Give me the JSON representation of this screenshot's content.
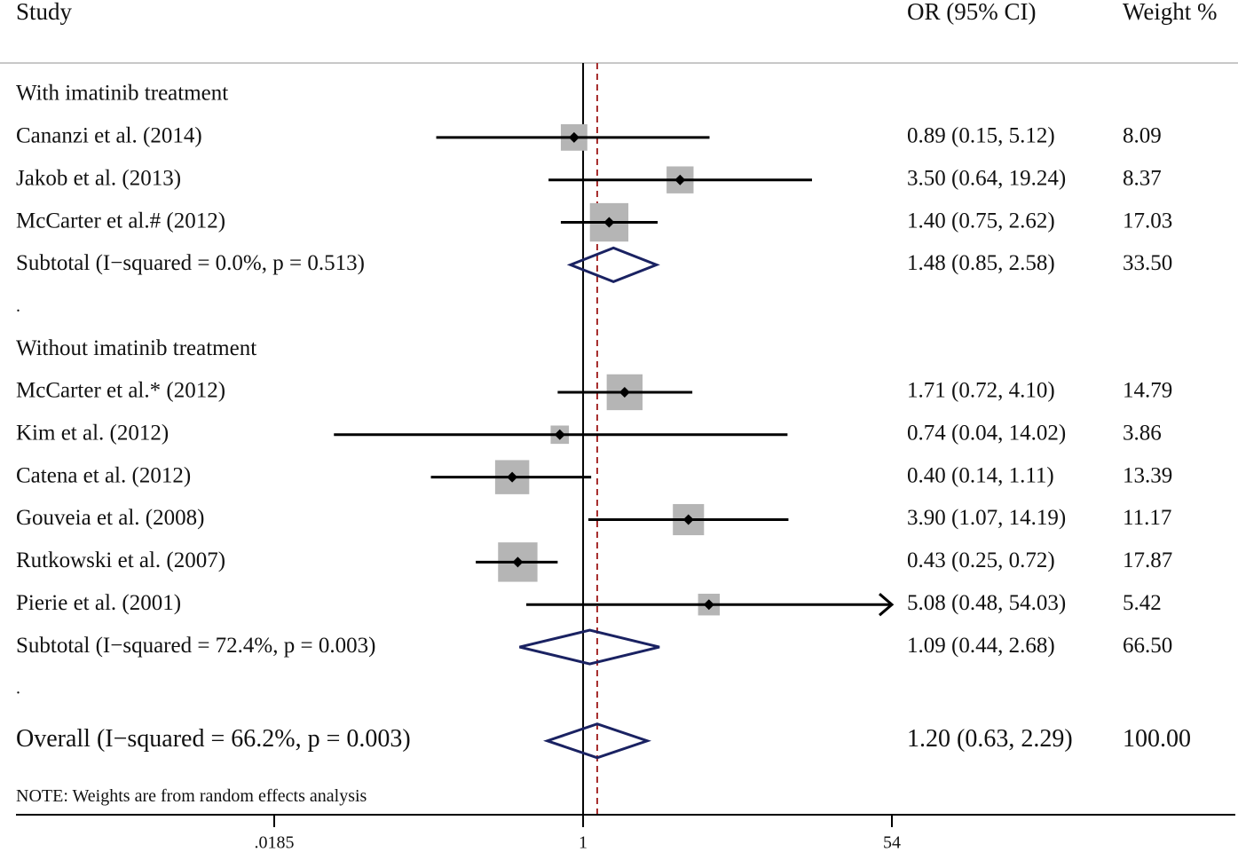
{
  "chart_data": {
    "type": "forest",
    "headers": {
      "study": "Study",
      "or": "OR (95% CI)",
      "weight": "Weight %"
    },
    "x_scale": "log",
    "xlim": [
      0.0185,
      54
    ],
    "null_value": 1,
    "overall_estimate": 1.2,
    "x_ticks": [
      {
        "value": 0.0185,
        "label": ".0185"
      },
      {
        "value": 1,
        "label": "1"
      },
      {
        "value": 54,
        "label": "54"
      }
    ],
    "rows": [
      {
        "kind": "group",
        "label": "With imatinib treatment"
      },
      {
        "kind": "study",
        "label": "Cananzi et al. (2014)",
        "or": 0.89,
        "lo": 0.15,
        "hi": 5.12,
        "ci_text": "0.89 (0.15, 5.12)",
        "weight": 8.09,
        "weight_text": "8.09"
      },
      {
        "kind": "study",
        "label": "Jakob et al. (2013)",
        "or": 3.5,
        "lo": 0.64,
        "hi": 19.24,
        "ci_text": "3.50 (0.64, 19.24)",
        "weight": 8.37,
        "weight_text": "8.37"
      },
      {
        "kind": "study",
        "label": "McCarter et al.# (2012)",
        "or": 1.4,
        "lo": 0.75,
        "hi": 2.62,
        "ci_text": "1.40 (0.75, 2.62)",
        "weight": 17.03,
        "weight_text": "17.03"
      },
      {
        "kind": "subtotal",
        "label": "Subtotal  (I−squared = 0.0%, p = 0.513)",
        "or": 1.48,
        "lo": 0.85,
        "hi": 2.58,
        "ci_text": "1.48 (0.85, 2.58)",
        "weight": 33.5,
        "weight_text": "33.50"
      },
      {
        "kind": "spacer",
        "label": "."
      },
      {
        "kind": "group",
        "label": "Without imatinib treatment"
      },
      {
        "kind": "study",
        "label": "McCarter et al.* (2012)",
        "or": 1.71,
        "lo": 0.72,
        "hi": 4.1,
        "ci_text": "1.71 (0.72, 4.10)",
        "weight": 14.79,
        "weight_text": "14.79"
      },
      {
        "kind": "study",
        "label": "Kim et al. (2012)",
        "or": 0.74,
        "lo": 0.04,
        "hi": 14.02,
        "ci_text": "0.74 (0.04, 14.02)",
        "weight": 3.86,
        "weight_text": "3.86"
      },
      {
        "kind": "study",
        "label": "Catena et al. (2012)",
        "or": 0.4,
        "lo": 0.14,
        "hi": 1.11,
        "ci_text": "0.40 (0.14, 1.11)",
        "weight": 13.39,
        "weight_text": "13.39"
      },
      {
        "kind": "study",
        "label": "Gouveia et al. (2008)",
        "or": 3.9,
        "lo": 1.07,
        "hi": 14.19,
        "ci_text": "3.90 (1.07, 14.19)",
        "weight": 11.17,
        "weight_text": "11.17"
      },
      {
        "kind": "study",
        "label": "Rutkowski et al. (2007)",
        "or": 0.43,
        "lo": 0.25,
        "hi": 0.72,
        "ci_text": "0.43 (0.25, 0.72)",
        "weight": 17.87,
        "weight_text": "17.87"
      },
      {
        "kind": "study",
        "label": "Pierie et al. (2001)",
        "or": 5.08,
        "lo": 0.48,
        "hi": 54.03,
        "ci_text": "5.08 (0.48, 54.03)",
        "weight": 5.42,
        "weight_text": "5.42",
        "arrow_right": true
      },
      {
        "kind": "subtotal",
        "label": "Subtotal  (I−squared = 72.4%, p = 0.003)",
        "or": 1.09,
        "lo": 0.44,
        "hi": 2.68,
        "ci_text": "1.09 (0.44, 2.68)",
        "weight": 66.5,
        "weight_text": "66.50"
      },
      {
        "kind": "spacer",
        "label": "."
      },
      {
        "kind": "overall",
        "label": "Overall  (I−squared = 66.2%, p = 0.003)",
        "or": 1.2,
        "lo": 0.63,
        "hi": 2.29,
        "ci_text": "1.20 (0.63, 2.29)",
        "weight": 100.0,
        "weight_text": "100.00"
      }
    ],
    "note": "NOTE: Weights are from random effects analysis"
  },
  "colors": {
    "text": "#111111",
    "ci_line": "#000000",
    "weight_box": "#b5b5b5",
    "point": "#000000",
    "diamond": "#1a2262",
    "reference_line": "#000000",
    "overall_line": "#a52a2a",
    "header_rule": "#c8c8c8"
  }
}
